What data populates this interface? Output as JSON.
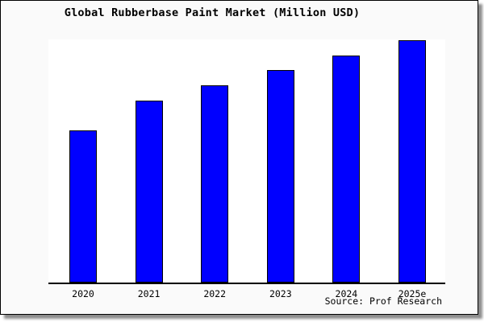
{
  "source": "Source: Prof Research",
  "colors": {
    "bar_fill": "#0000ff",
    "bar_border": "#000000",
    "figure_bg": "#fafafa",
    "plot_bg": "#ffffff",
    "frame": "#000000",
    "text": "#000000"
  },
  "chart_data": {
    "type": "bar",
    "title": "Global Rubberbase Paint Market (Million USD)",
    "categories": [
      "2020",
      "2021",
      "2022",
      "2023",
      "2024",
      "2025e"
    ],
    "values": [
      62.6,
      74.8,
      81.1,
      87.4,
      93.4,
      99.7
    ],
    "xlabel": "",
    "ylabel": "",
    "ylim": [
      0,
      100
    ],
    "grid": false,
    "legend": false,
    "annotations": [
      "Source: Prof Research"
    ]
  }
}
